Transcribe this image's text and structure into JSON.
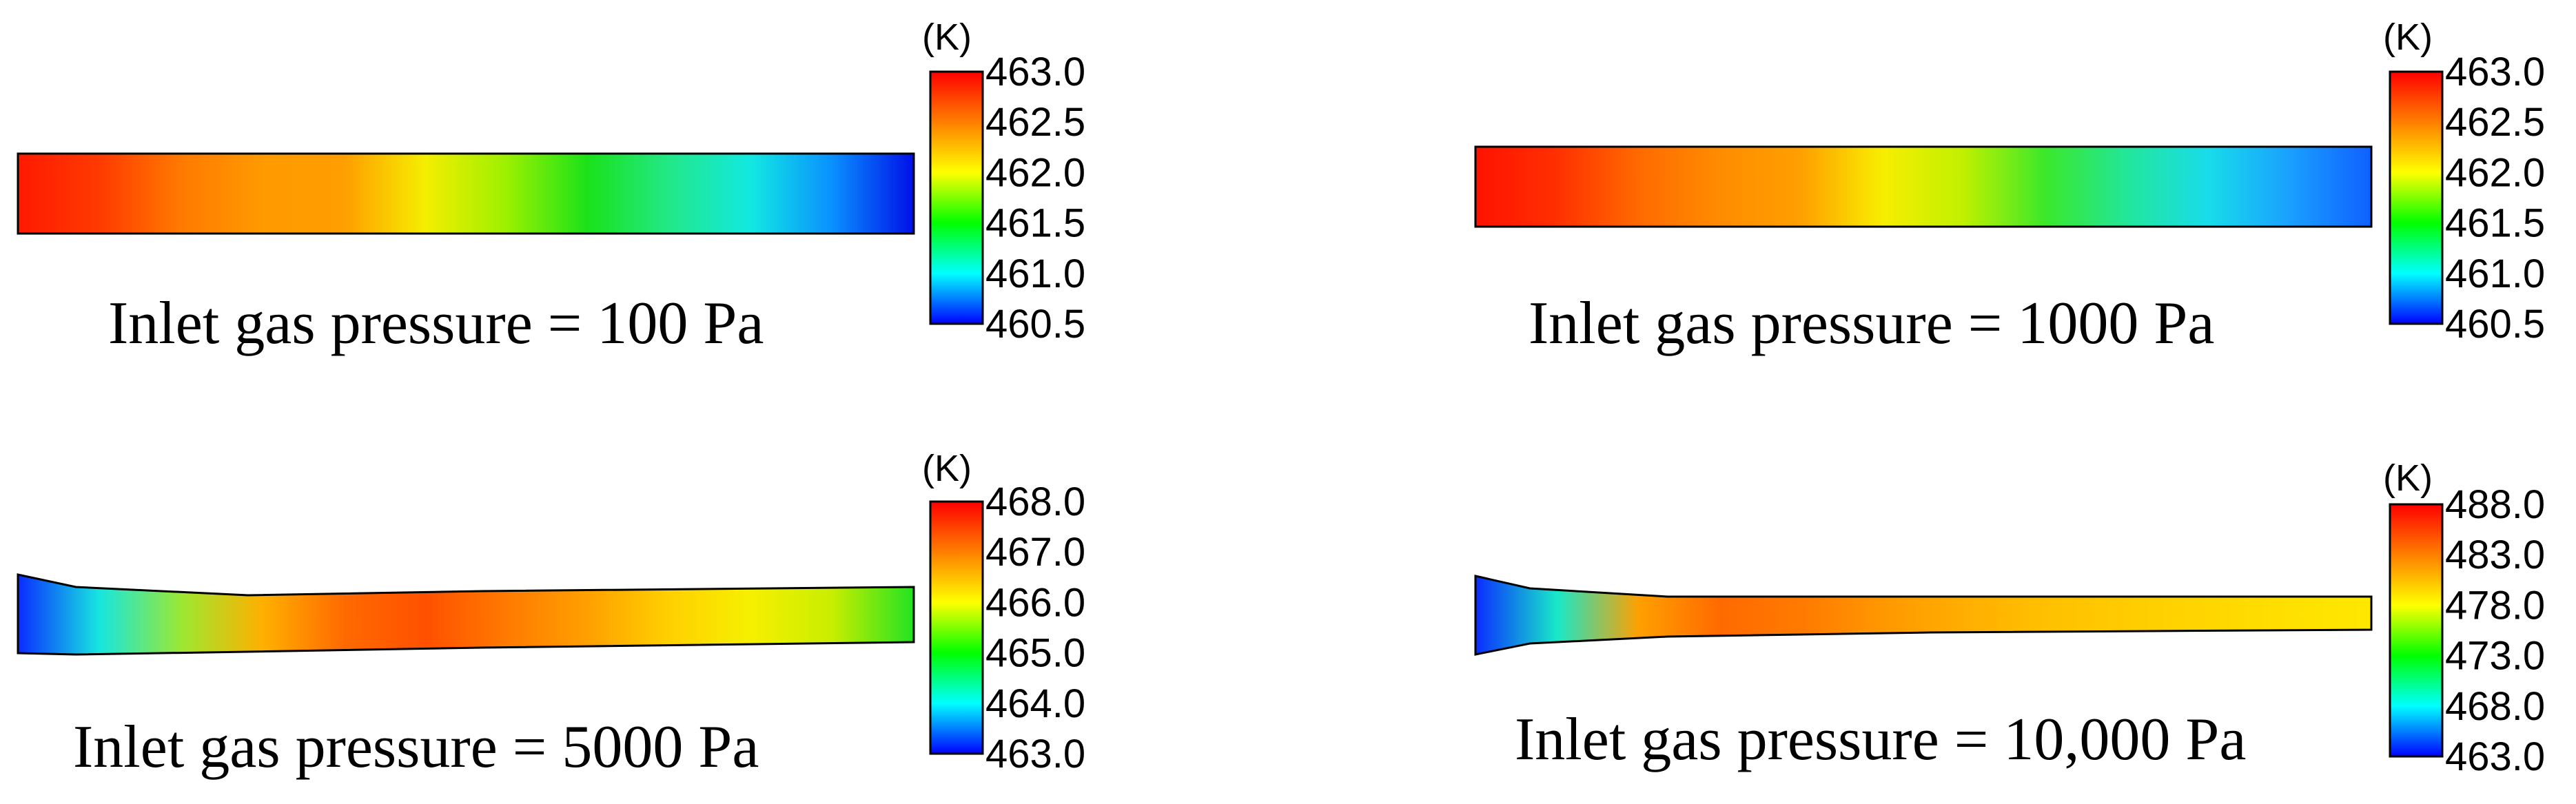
{
  "panels": [
    {
      "id": "p100",
      "caption": "Inlet gas pressure = 100 Pa",
      "unit": "(K)",
      "ticks": [
        "463.0",
        "462.5",
        "462.0",
        "461.5",
        "461.0",
        "460.5"
      ],
      "field_colors": [
        "#ff1a00",
        "#ff3a00",
        "#ff7a00",
        "#ff9a00",
        "#ff9e00",
        "#f5ee00",
        "#9cf000",
        "#1ae21a",
        "#22e888",
        "#12e8e2",
        "#0a90ff",
        "#0010e8"
      ]
    },
    {
      "id": "p1000",
      "caption": "Inlet gas pressure = 1000 Pa",
      "unit": "(K)",
      "ticks": [
        "463.0",
        "462.5",
        "462.0",
        "461.5",
        "461.0",
        "460.5"
      ],
      "field_colors": [
        "#ff1200",
        "#ff3000",
        "#ff6a00",
        "#ff8c00",
        "#ffa000",
        "#f8ee00",
        "#bff000",
        "#3be82a",
        "#22e69a",
        "#18dcea",
        "#1aa0ff",
        "#1060ff"
      ]
    },
    {
      "id": "p5000",
      "caption": "Inlet gas pressure = 5000 Pa",
      "unit": "(K)",
      "ticks": [
        "468.0",
        "467.0",
        "466.0",
        "465.0",
        "464.0",
        "463.0"
      ],
      "field_colors": [
        "#0a2cff",
        "#17e6df",
        "#9be832",
        "#ffb000",
        "#ff6a00",
        "#ff5000",
        "#ff7a00",
        "#ffa000",
        "#ffd000",
        "#f6f000",
        "#c8ee00",
        "#22e222"
      ]
    },
    {
      "id": "p10000",
      "caption": "Inlet gas pressure = 10,000 Pa",
      "unit": "(K)",
      "ticks": [
        "488.0",
        "483.0",
        "478.0",
        "473.0",
        "468.0",
        "463.0"
      ],
      "field_colors": [
        "#0a2cff",
        "#18e8c8",
        "#ffa000",
        "#ff6a00",
        "#ff7a00",
        "#ff9800",
        "#ffae00",
        "#ffc000",
        "#ffcc00",
        "#ffd600",
        "#ffe000",
        "#ffe800"
      ]
    }
  ],
  "colorbar_colors": [
    "#ff0000",
    "#ff7f00",
    "#ffff00",
    "#00ff00",
    "#00ffff",
    "#0000ff"
  ]
}
